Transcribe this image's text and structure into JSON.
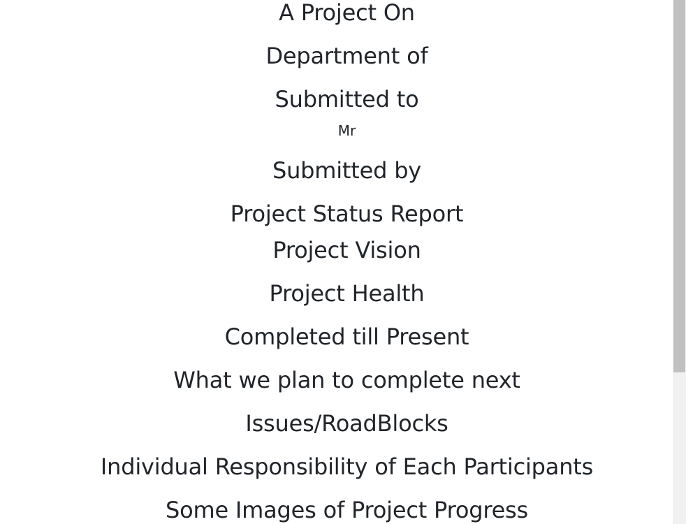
{
  "document": {
    "lines": [
      "A Project On",
      "Department of",
      "Submitted to",
      "Mr",
      "Submitted by",
      "Project Status Report",
      "Project Vision",
      "Project Health",
      "Completed till Present",
      "What we plan to complete next",
      "Issues/RoadBlocks",
      "Individual Responsibility of Each Participants",
      "Some Images of Project Progress"
    ]
  }
}
